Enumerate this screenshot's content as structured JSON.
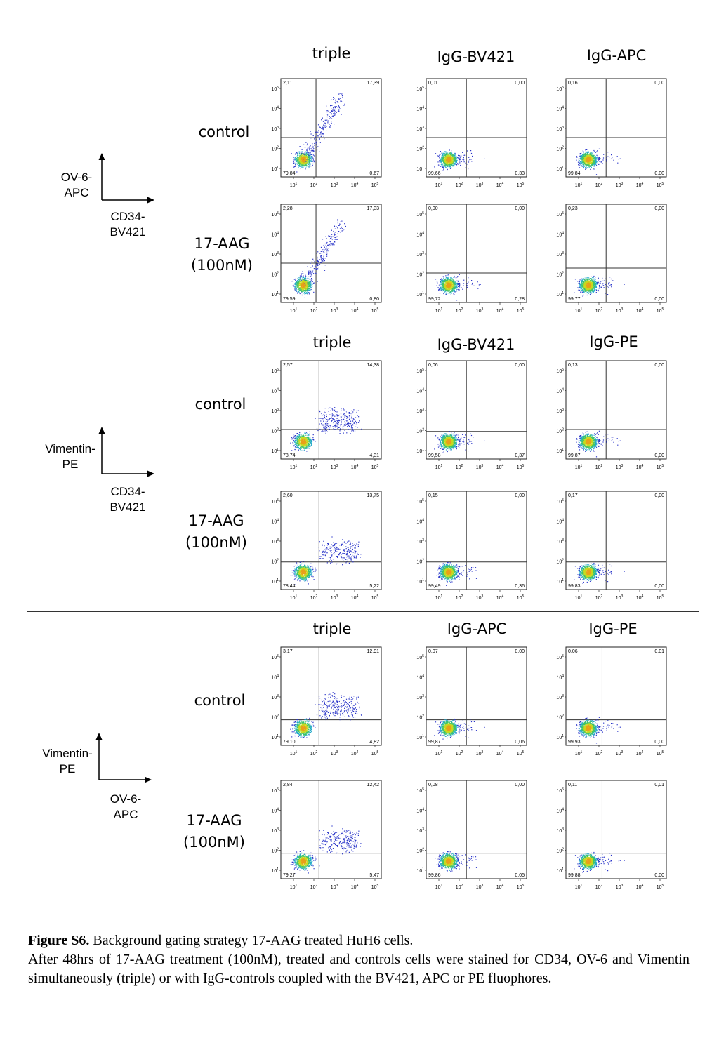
{
  "sections": [
    {
      "col_heads": [
        "triple",
        "IgG-BV421",
        "IgG-APC"
      ],
      "row_labels": [
        [
          "control"
        ],
        [
          "17-AAG",
          "(100nM)"
        ]
      ],
      "y_axis_label": [
        "OV-6-",
        "APC"
      ],
      "x_axis_label": [
        "CD34-",
        "BV421"
      ]
    },
    {
      "col_heads": [
        "triple",
        "IgG-BV421",
        "IgG-PE"
      ],
      "row_labels": [
        [
          "control"
        ],
        [
          "17-AAG",
          "(100nM)"
        ]
      ],
      "y_axis_label": [
        "Vimentin-",
        "PE"
      ],
      "x_axis_label": [
        "CD34-",
        "BV421"
      ]
    },
    {
      "col_heads": [
        "triple",
        "IgG-APC",
        "IgG-PE"
      ],
      "row_labels": [
        [
          "control"
        ],
        [
          "17-AAG",
          "(100nM)"
        ]
      ],
      "y_axis_label": [
        "Vimentin-",
        "PE"
      ],
      "x_axis_label": [
        "OV-6-",
        "APC"
      ]
    }
  ],
  "chart_data": [
    {
      "type": "scatter",
      "section": 1,
      "row": "control",
      "column": "triple",
      "quadrants": {
        "UL": "2,11",
        "UR": "17,39",
        "LL": "79,84",
        "LR": "0,67"
      },
      "xlim": [
        1,
        5
      ],
      "ylim": [
        1,
        5
      ],
      "log_scale": true,
      "ticks": [
        1,
        2,
        3,
        4,
        5
      ]
    },
    {
      "type": "scatter",
      "section": 1,
      "row": "control",
      "column": "IgG-BV421",
      "quadrants": {
        "UL": "0,01",
        "UR": "0,00",
        "LL": "99,66",
        "LR": "0,33"
      }
    },
    {
      "type": "scatter",
      "section": 1,
      "row": "control",
      "column": "IgG-APC",
      "quadrants": {
        "UL": "0,16",
        "UR": "0,00",
        "LL": "99,84",
        "LR": "0,00"
      }
    },
    {
      "type": "scatter",
      "section": 1,
      "row": "17-AAG (100nM)",
      "column": "triple",
      "quadrants": {
        "UL": "2,28",
        "UR": "17,33",
        "LL": "79,59",
        "LR": "0,80"
      }
    },
    {
      "type": "scatter",
      "section": 1,
      "row": "17-AAG (100nM)",
      "column": "IgG-BV421",
      "quadrants": {
        "UL": "0,00",
        "UR": "0,00",
        "LL": "99,72",
        "LR": "0,28"
      }
    },
    {
      "type": "scatter",
      "section": 1,
      "row": "17-AAG (100nM)",
      "column": "IgG-APC",
      "quadrants": {
        "UL": "0,23",
        "UR": "0,00",
        "LL": "99,77",
        "LR": "0,00"
      }
    },
    {
      "type": "scatter",
      "section": 2,
      "row": "control",
      "column": "triple",
      "quadrants": {
        "UL": "2,57",
        "UR": "14,38",
        "LL": "78,74",
        "LR": "4,31"
      }
    },
    {
      "type": "scatter",
      "section": 2,
      "row": "control",
      "column": "IgG-BV421",
      "quadrants": {
        "UL": "0,06",
        "UR": "0,00",
        "LL": "99,58",
        "LR": "0,37"
      }
    },
    {
      "type": "scatter",
      "section": 2,
      "row": "control",
      "column": "IgG-PE",
      "quadrants": {
        "UL": "0,13",
        "UR": "0,00",
        "LL": "99,87",
        "LR": "0,00"
      }
    },
    {
      "type": "scatter",
      "section": 2,
      "row": "17-AAG (100nM)",
      "column": "triple",
      "quadrants": {
        "UL": "2,60",
        "UR": "13,75",
        "LL": "78,44",
        "LR": "5,22"
      }
    },
    {
      "type": "scatter",
      "section": 2,
      "row": "17-AAG (100nM)",
      "column": "IgG-BV421",
      "quadrants": {
        "UL": "0,15",
        "UR": "0,00",
        "LL": "99,49",
        "LR": "0,36"
      }
    },
    {
      "type": "scatter",
      "section": 2,
      "row": "17-AAG (100nM)",
      "column": "IgG-PE",
      "quadrants": {
        "UL": "0,17",
        "UR": "0,00",
        "LL": "99,83",
        "LR": "0,00"
      }
    },
    {
      "type": "scatter",
      "section": 3,
      "row": "control",
      "column": "triple",
      "quadrants": {
        "UL": "3,17",
        "UR": "12,91",
        "LL": "79,10",
        "LR": "4,82"
      }
    },
    {
      "type": "scatter",
      "section": 3,
      "row": "control",
      "column": "IgG-APC",
      "quadrants": {
        "UL": "0,07",
        "UR": "0,00",
        "LL": "99,87",
        "LR": "0,06"
      }
    },
    {
      "type": "scatter",
      "section": 3,
      "row": "control",
      "column": "IgG-PE",
      "quadrants": {
        "UL": "0,06",
        "UR": "0,01",
        "LL": "99,93",
        "LR": "0,00"
      }
    },
    {
      "type": "scatter",
      "section": 3,
      "row": "17-AAG (100nM)",
      "column": "triple",
      "quadrants": {
        "UL": "2,84",
        "UR": "12,42",
        "LL": "79,27",
        "LR": "5,47"
      }
    },
    {
      "type": "scatter",
      "section": 3,
      "row": "17-AAG (100nM)",
      "column": "IgG-APC",
      "quadrants": {
        "UL": "0,08",
        "UR": "0,00",
        "LL": "99,86",
        "LR": "0,05"
      }
    },
    {
      "type": "scatter",
      "section": 3,
      "row": "17-AAG (100nM)",
      "column": "IgG-PE",
      "quadrants": {
        "UL": "0,11",
        "UR": "0,01",
        "LL": "99,88",
        "LR": "0,00"
      }
    }
  ],
  "caption": {
    "title": "Figure S6.",
    "title_rest": " Background gating strategy 17-AAG treated HuH6 cells.",
    "body": "After 48hrs of 17-AAG treatment (100nM), treated and controls cells were stained for CD34, OV-6 and Vimentin simultaneously (triple) or with IgG-controls coupled with the BV421, APC or PE fluophores."
  }
}
